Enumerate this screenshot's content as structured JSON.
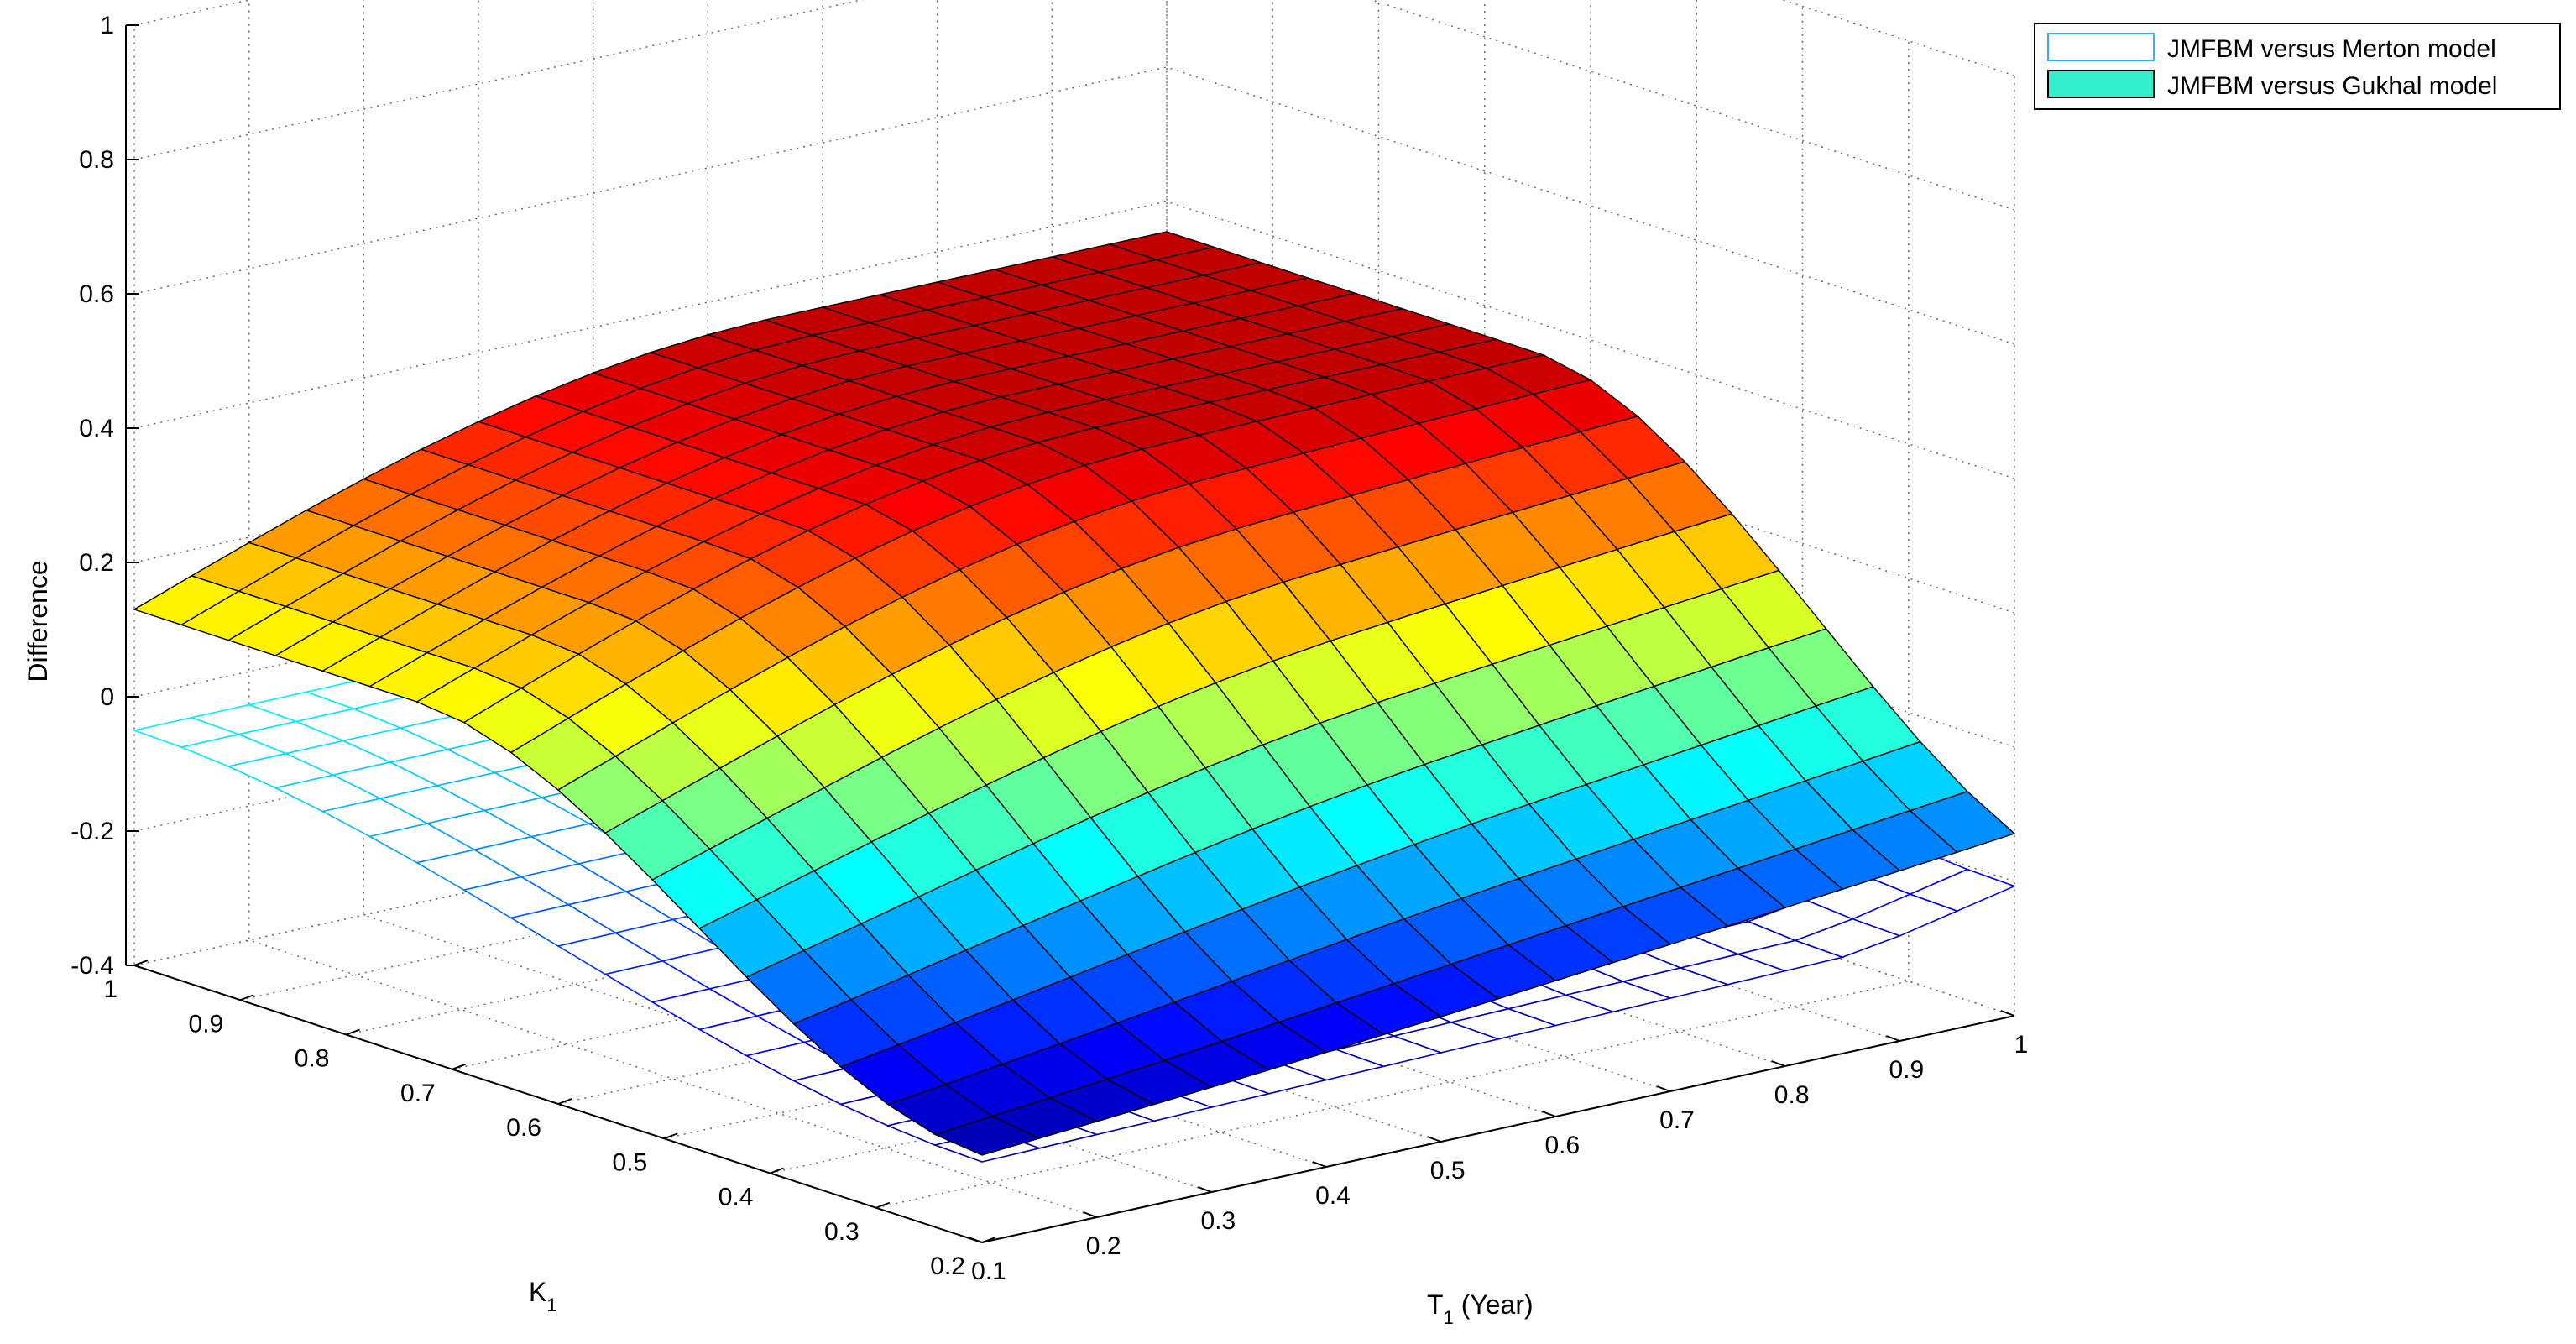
{
  "chart_data": {
    "type": "surface3d",
    "title": "",
    "xlabel": "T",
    "xlabel_sub": "1",
    "xlabel_suffix": " (Year)",
    "ylabel": "K",
    "ylabel_sub": "1",
    "zlabel": "Difference",
    "xlim": [
      0.1,
      1
    ],
    "ylim": [
      0.2,
      1
    ],
    "zlim": [
      -0.4,
      1
    ],
    "xticks": [
      "0.1",
      "0.2",
      "0.3",
      "0.4",
      "0.5",
      "0.6",
      "0.7",
      "0.8",
      "0.9",
      "1"
    ],
    "yticks": [
      "0.2",
      "0.3",
      "0.4",
      "0.5",
      "0.6",
      "0.7",
      "0.8",
      "0.9",
      "1"
    ],
    "zticks": [
      "-0.4",
      "-0.2",
      "0",
      "0.2",
      "0.4",
      "0.6",
      "0.8",
      "1"
    ],
    "grid": true,
    "legend_position": "top-right",
    "grid_size": [
      19,
      19
    ],
    "series": [
      {
        "name": "JMFBM versus Merton model",
        "style": "mesh",
        "legend_edge": "#33aaff",
        "legend_fill": "#ffffff",
        "colormap": "jet",
        "z_at_max_K": -0.05,
        "z_min": -0.28,
        "z_at_max_T": -0.18
      },
      {
        "name": "JMFBM versus Gukhal model",
        "style": "surface",
        "legend_edge": "#000000",
        "legend_fill": "#33eecc",
        "colormap": "jet",
        "z_at_max_K": 0.13,
        "z_ridge_max": 0.38,
        "z_min": -0.27,
        "z_at_max_T": -0.16
      }
    ]
  }
}
